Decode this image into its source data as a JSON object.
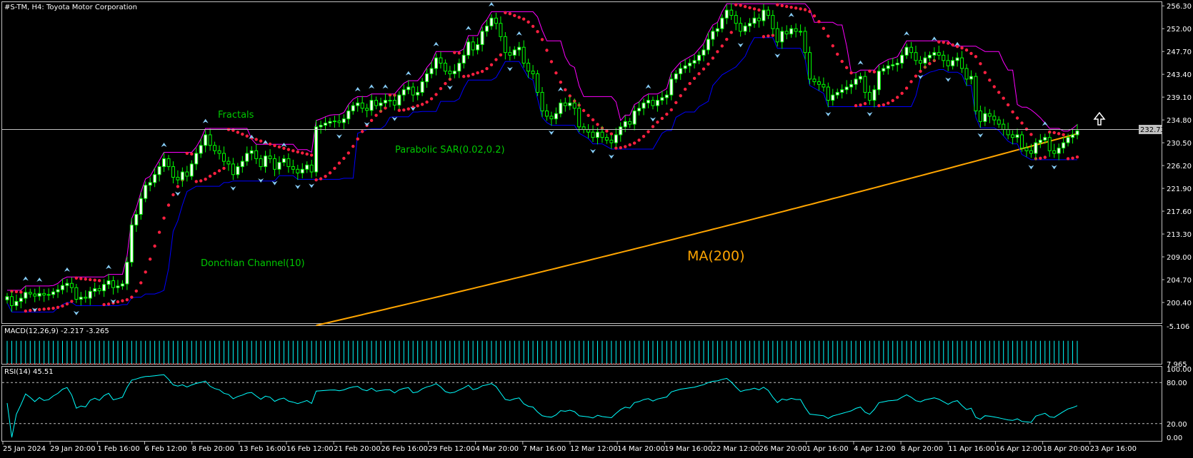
{
  "header": {
    "symbol": "#S-TM, H4:",
    "company": "Toyota Motor Corporation"
  },
  "annotations": {
    "fractals": "Fractals",
    "parabolic_sar": "Parabolic SAR(0.02,0.2)",
    "donchian": "Donchian Channel(10)",
    "ma": "MA(200)"
  },
  "price_label": "232.73",
  "arrow_icon": "up-arrow-icon",
  "colors": {
    "background": "#000000",
    "grid_border": "#c0c0c0",
    "axis_text": "#ffffff",
    "candle_up": "#00ff00",
    "candle_body_up": "#ffffff",
    "candle_down": "#00ff00",
    "sar": "#ff2040",
    "donchian_upper": "#ff00ff",
    "donchian_lower": "#0000ff",
    "ma": "#ffa500",
    "fractal": "#87cefa",
    "annotation_green": "#00c800",
    "macd_hist": "#00ffff",
    "macd_signal": "#ff3030",
    "rsi": "#00ffff",
    "current_line": "#c0c0c0"
  },
  "chart_data": [
    {
      "type": "candlestick",
      "title": "#S-TM, H4: Toyota Motor Corporation",
      "ylim": [
        196.5,
        257.0
      ],
      "y_ticks": [
        256.3,
        252.0,
        247.7,
        243.4,
        239.1,
        234.8,
        230.5,
        226.2,
        221.9,
        217.6,
        213.3,
        209.0,
        204.7,
        200.4
      ],
      "x_labels": [
        "25 Jan 2024",
        "29 Jan 20:00",
        "1 Feb 16:00",
        "6 Feb 12:00",
        "8 Feb 20:00",
        "13 Feb 16:00",
        "16 Feb 12:00",
        "21 Feb 20:00",
        "26 Feb 16:00",
        "29 Feb 12:00",
        "4 Mar 20:00",
        "7 Mar 16:00",
        "12 Mar 12:00",
        "14 Mar 20:00",
        "19 Mar 16:00",
        "22 Mar 12:00",
        "26 Mar 20:00",
        "1 Apr 16:00",
        "4 Apr 12:00",
        "8 Apr 20:00",
        "11 Apr 16:00",
        "16 Apr 12:00",
        "18 Apr 20:00",
        "23 Apr 16:00"
      ],
      "close": [
        201.5,
        199.8,
        200.6,
        201.2,
        202.3,
        202.0,
        201.6,
        202.1,
        201.8,
        201.9,
        202.4,
        202.8,
        203.6,
        204.0,
        203.2,
        201.0,
        201.4,
        201.2,
        202.5,
        203.0,
        202.6,
        203.8,
        204.5,
        203.2,
        203.5,
        203.9,
        208.0,
        215.0,
        217.0,
        220.0,
        222.5,
        223.0,
        224.5,
        226.0,
        227.5,
        226.0,
        224.0,
        223.5,
        225.0,
        224.2,
        226.5,
        228.5,
        230.0,
        232.0,
        230.0,
        229.0,
        228.5,
        227.0,
        226.5,
        224.5,
        226.0,
        227.0,
        228.5,
        229.0,
        227.5,
        226.0,
        228.0,
        227.5,
        225.5,
        226.8,
        227.5,
        226.0,
        225.5,
        224.8,
        225.5,
        226.3,
        225.0,
        233.5,
        233.8,
        234.2,
        234.5,
        234.6,
        234.3,
        235.0,
        236.5,
        237.5,
        238.0,
        237.0,
        236.6,
        238.5,
        237.5,
        238.0,
        238.5,
        238.5,
        237.6,
        239.5,
        240.5,
        241.0,
        239.5,
        240.0,
        242.0,
        243.5,
        244.5,
        246.5,
        245.5,
        244.0,
        243.5,
        244.0,
        245.5,
        247.0,
        249.5,
        248.0,
        249.0,
        251.5,
        252.5,
        254.0,
        253.0,
        250.5,
        247.5,
        247.0,
        248.0,
        248.5,
        245.5,
        244.0,
        243.5,
        240.0,
        236.5,
        235.5,
        235.0,
        236.0,
        238.0,
        237.5,
        238.0,
        237.0,
        233.5,
        233.0,
        232.5,
        231.5,
        232.5,
        231.5,
        231.0,
        230.5,
        232.0,
        233.5,
        234.5,
        234.0,
        236.5,
        237.0,
        238.0,
        238.5,
        237.5,
        238.5,
        239.0,
        239.5,
        242.5,
        243.5,
        244.5,
        245.0,
        245.5,
        246.0,
        247.0,
        248.0,
        250.0,
        251.5,
        252.0,
        254.0,
        255.5,
        254.5,
        253.0,
        251.5,
        252.5,
        253.0,
        254.0,
        253.5,
        255.5,
        254.5,
        252.0,
        249.5,
        251.5,
        251.0,
        252.0,
        251.5,
        251.5,
        247.5,
        242.5,
        242.0,
        241.5,
        241.0,
        238.5,
        239.5,
        240.0,
        240.5,
        241.0,
        241.5,
        242.5,
        243.0,
        240.0,
        238.5,
        240.5,
        244.0,
        244.5,
        245.0,
        245.2,
        245.5,
        247.0,
        248.5,
        247.5,
        246.0,
        245.5,
        246.5,
        247.0,
        247.5,
        247.0,
        246.0,
        245.0,
        246.0,
        246.5,
        244.5,
        242.5,
        243.0,
        236.5,
        234.5,
        236.0,
        235.5,
        234.8,
        234.0,
        233.0,
        232.0,
        231.5,
        232.0,
        229.5,
        229.0,
        228.5,
        230.5,
        231.0,
        231.5,
        229.0,
        228.5,
        229.5,
        230.5,
        231.5,
        232.0,
        232.73
      ],
      "sar_note": "Parabolic SAR(0.02,0.2) dots plotted above/below price",
      "donchian_note": "Donchian Channel(10) upper/lower bands",
      "ma_note": "MA(200) rising from ~196 to ~232.2"
    },
    {
      "type": "bar",
      "title": "MACD(12,26,9) -2.217 -3.265",
      "ylim": [
        -5.106,
        7.965
      ],
      "y_ticks": [
        7.965,
        -5.106
      ]
    },
    {
      "type": "line",
      "title": "RSI(14) 45.51",
      "ylim": [
        0,
        100
      ],
      "y_ticks": [
        "100.00",
        "80.00",
        "20.00",
        "0.00"
      ],
      "levels": [
        80,
        20
      ]
    }
  ],
  "panel_titles": {
    "macd": "MACD(12,26,9) -2.217 -3.265",
    "rsi": "RSI(14) 45.51"
  }
}
